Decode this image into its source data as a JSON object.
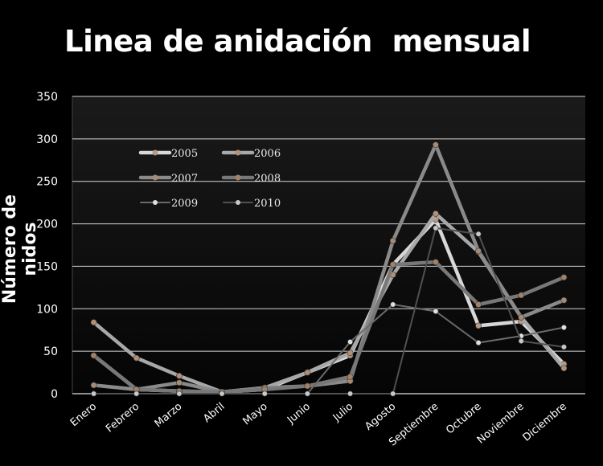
{
  "chart_data": {
    "type": "line",
    "title": "Linea de anidación  mensual",
    "xlabel": "",
    "ylabel": "Número de nidos",
    "ylim": [
      0,
      350
    ],
    "yticks": [
      "0",
      "50",
      "100",
      "150",
      "200",
      "250",
      "300",
      "350"
    ],
    "grid": true,
    "legend_placement": "top-left",
    "categories": [
      "Enero",
      "Febrero",
      "Marzo",
      "Abril",
      "Mayo",
      "Junio",
      "Julio",
      "Agosto",
      "Septiembre",
      "Octubre",
      "Noviembre",
      "Diciembre"
    ],
    "series": [
      {
        "name": "2005",
        "color": "#d8d8d8",
        "marker": "#b89a82",
        "values": [
          45,
          5,
          3,
          2,
          5,
          25,
          45,
          152,
          205,
          80,
          85,
          35
        ]
      },
      {
        "name": "2006",
        "color": "#a8a8a8",
        "marker": "#b09077",
        "values": [
          84,
          42,
          21,
          2,
          7,
          25,
          48,
          140,
          212,
          167,
          90,
          30
        ]
      },
      {
        "name": "2007",
        "color": "#8a8a8a",
        "marker": "#a88a72",
        "values": [
          10,
          5,
          13,
          2,
          7,
          9,
          15,
          180,
          293,
          168,
          90,
          110
        ]
      },
      {
        "name": "2008",
        "color": "#787878",
        "marker": "#a0826a",
        "values": [
          45,
          5,
          3,
          2,
          5,
          9,
          20,
          152,
          155,
          105,
          116,
          137
        ]
      },
      {
        "name": "2009",
        "color": "#6a6a6a",
        "marker": "#e0e0e0",
        "values": [
          0,
          0,
          0,
          0,
          0,
          0,
          61,
          105,
          97,
          60,
          68,
          78
        ]
      },
      {
        "name": "2010",
        "color": "#505050",
        "marker": "#c8c8c8",
        "values": [
          0,
          0,
          0,
          0,
          0,
          0,
          0,
          0,
          195,
          188,
          62,
          55
        ]
      }
    ]
  }
}
